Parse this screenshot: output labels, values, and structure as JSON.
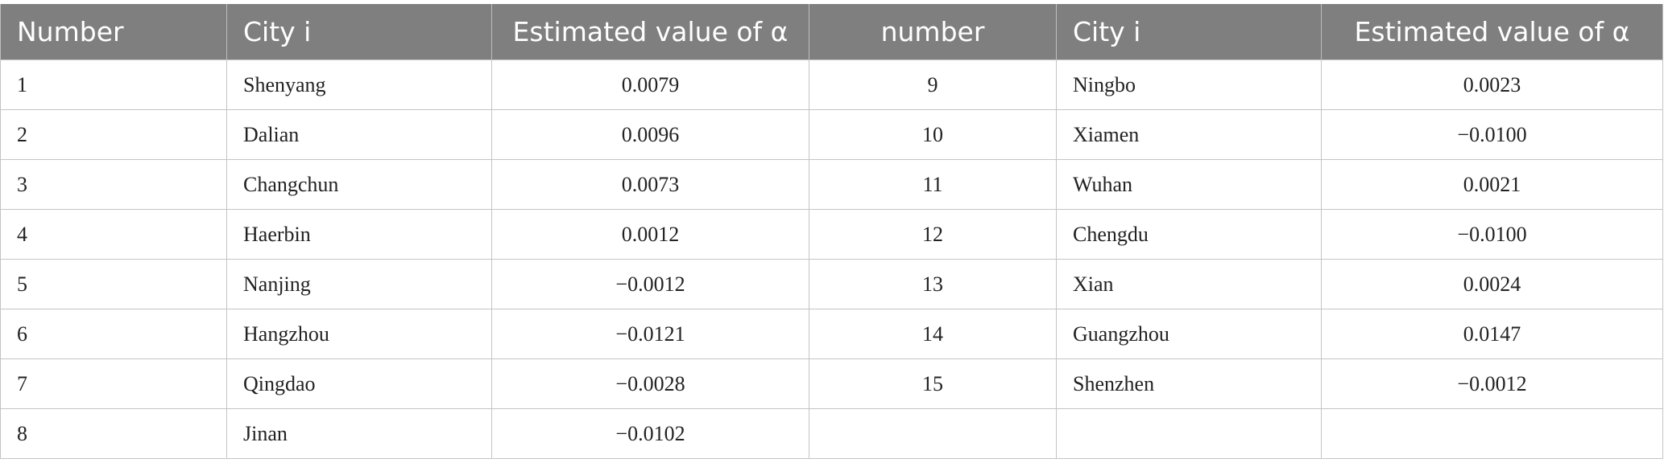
{
  "table": {
    "header": [
      "Number",
      "City i",
      "Estimated value of α",
      "number",
      "City i",
      "Estimated value of α"
    ],
    "rows": [
      [
        "1",
        "Shenyang",
        "0.0079",
        "9",
        "Ningbo",
        "0.0023"
      ],
      [
        "2",
        "Dalian",
        "0.0096",
        "10",
        "Xiamen",
        "−0.0100"
      ],
      [
        "3",
        "Changchun",
        "0.0073",
        "11",
        "Wuhan",
        "0.0021"
      ],
      [
        "4",
        "Haerbin",
        "0.0012",
        "12",
        "Chengdu",
        "−0.0100"
      ],
      [
        "5",
        "Nanjing",
        "−0.0012",
        "13",
        "Xian",
        "0.0024"
      ],
      [
        "6",
        "Hangzhou",
        "−0.0121",
        "14",
        "Guangzhou",
        "0.0147"
      ],
      [
        "7",
        "Qingdao",
        "−0.0028",
        "15",
        "Shenzhen",
        "−0.0012"
      ],
      [
        "8",
        "Jinan",
        "−0.0102"
      ]
    ]
  }
}
